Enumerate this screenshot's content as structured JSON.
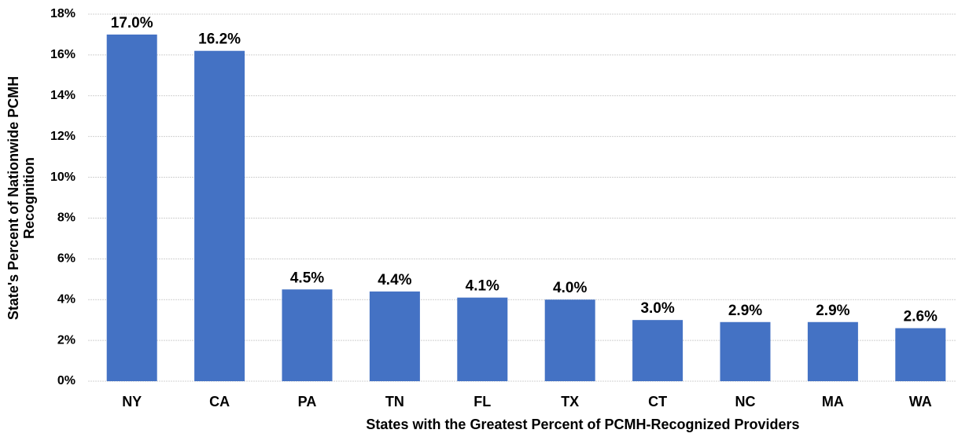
{
  "chart_data": {
    "type": "bar",
    "xlabel": "States with  the Greatest Percent of PCMH-Recognized Providers",
    "ylabel": [
      "State's Percent of Nationwide PCMH",
      "Recognition"
    ],
    "categories": [
      "NY",
      "CA",
      "PA",
      "TN",
      "FL",
      "TX",
      "CT",
      "NC",
      "MA",
      "WA"
    ],
    "values": [
      17.0,
      16.2,
      4.5,
      4.4,
      4.1,
      4.0,
      3.0,
      2.9,
      2.9,
      2.6
    ],
    "value_labels": [
      "17.0%",
      "16.2%",
      "4.5%",
      "4.4%",
      "4.1%",
      "4.0%",
      "3.0%",
      "2.9%",
      "2.9%",
      "2.6%"
    ],
    "color": "#4472c4",
    "ylim": [
      0,
      18
    ],
    "yticks": [
      {
        "value": 0,
        "label": "0%"
      },
      {
        "value": 2,
        "label": "2%"
      },
      {
        "value": 4,
        "label": "4%"
      },
      {
        "value": 6,
        "label": "6%"
      },
      {
        "value": 8,
        "label": "8%"
      },
      {
        "value": 10,
        "label": "10%"
      },
      {
        "value": 12,
        "label": "12%"
      },
      {
        "value": 14,
        "label": "14%"
      },
      {
        "value": 16,
        "label": "16%"
      },
      {
        "value": 18,
        "label": "18%"
      }
    ],
    "grid": true
  }
}
